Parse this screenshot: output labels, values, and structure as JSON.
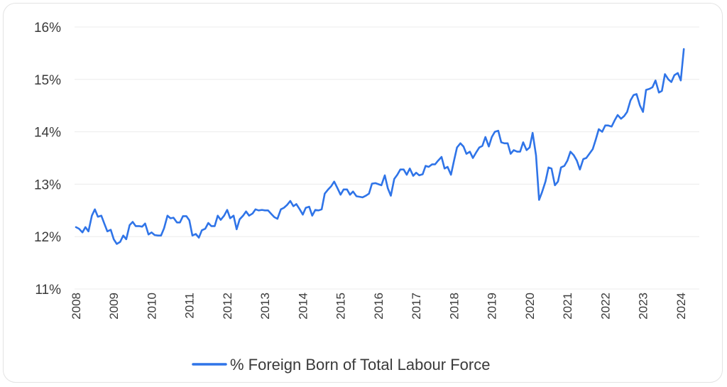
{
  "chart_data": {
    "type": "line",
    "title": "",
    "xlabel": "",
    "ylabel": "",
    "ylim": [
      11,
      16
    ],
    "y_ticks": [
      "11%",
      "12%",
      "13%",
      "14%",
      "15%",
      "16%"
    ],
    "y_tick_values": [
      11,
      12,
      13,
      14,
      15,
      16
    ],
    "x_ticks": [
      "2008",
      "2009",
      "2010",
      "2011",
      "2012",
      "2013",
      "2014",
      "2015",
      "2016",
      "2017",
      "2018",
      "2019",
      "2020",
      "2021",
      "2022",
      "2023",
      "2024"
    ],
    "x_tick_values": [
      2008,
      2009,
      2010,
      2011,
      2012,
      2013,
      2014,
      2015,
      2016,
      2017,
      2018,
      2019,
      2020,
      2021,
      2022,
      2023,
      2024
    ],
    "xlim": [
      2008,
      2024.17
    ],
    "grid": "horizontal",
    "legend_position": "bottom",
    "series": [
      {
        "name": "% Foreign Born of Total Labour Force",
        "color": "#2f74e8",
        "x": [
          2008.0,
          2008.08,
          2008.17,
          2008.25,
          2008.33,
          2008.42,
          2008.5,
          2008.58,
          2008.67,
          2008.75,
          2008.83,
          2008.92,
          2009.0,
          2009.08,
          2009.17,
          2009.25,
          2009.33,
          2009.42,
          2009.5,
          2009.58,
          2009.67,
          2009.75,
          2009.83,
          2009.92,
          2010.0,
          2010.08,
          2010.17,
          2010.25,
          2010.33,
          2010.42,
          2010.5,
          2010.58,
          2010.67,
          2010.75,
          2010.83,
          2010.92,
          2011.0,
          2011.08,
          2011.17,
          2011.25,
          2011.33,
          2011.42,
          2011.5,
          2011.58,
          2011.67,
          2011.75,
          2011.83,
          2011.92,
          2012.0,
          2012.08,
          2012.17,
          2012.25,
          2012.33,
          2012.42,
          2012.5,
          2012.58,
          2012.67,
          2012.75,
          2012.83,
          2012.92,
          2013.0,
          2013.08,
          2013.17,
          2013.25,
          2013.33,
          2013.42,
          2013.5,
          2013.58,
          2013.67,
          2013.75,
          2013.83,
          2013.92,
          2014.0,
          2014.08,
          2014.17,
          2014.25,
          2014.33,
          2014.42,
          2014.5,
          2014.58,
          2014.67,
          2014.75,
          2014.83,
          2014.92,
          2015.0,
          2015.08,
          2015.17,
          2015.25,
          2015.33,
          2015.42,
          2015.5,
          2015.58,
          2015.67,
          2015.75,
          2015.83,
          2015.92,
          2016.0,
          2016.08,
          2016.17,
          2016.25,
          2016.33,
          2016.42,
          2016.5,
          2016.58,
          2016.67,
          2016.75,
          2016.83,
          2016.92,
          2017.0,
          2017.08,
          2017.17,
          2017.25,
          2017.33,
          2017.42,
          2017.5,
          2017.58,
          2017.67,
          2017.75,
          2017.83,
          2017.92,
          2018.0,
          2018.08,
          2018.17,
          2018.25,
          2018.33,
          2018.42,
          2018.5,
          2018.58,
          2018.67,
          2018.75,
          2018.83,
          2018.92,
          2019.0,
          2019.08,
          2019.17,
          2019.25,
          2019.33,
          2019.42,
          2019.5,
          2019.58,
          2019.67,
          2019.75,
          2019.83,
          2019.92,
          2020.0,
          2020.08,
          2020.17,
          2020.25,
          2020.33,
          2020.42,
          2020.5,
          2020.58,
          2020.67,
          2020.75,
          2020.83,
          2020.92,
          2021.0,
          2021.08,
          2021.17,
          2021.25,
          2021.33,
          2021.42,
          2021.5,
          2021.58,
          2021.67,
          2021.75,
          2021.83,
          2021.92,
          2022.0,
          2022.08,
          2022.17,
          2022.25,
          2022.33,
          2022.42,
          2022.5,
          2022.58,
          2022.67,
          2022.75,
          2022.83,
          2022.92,
          2023.0,
          2023.08,
          2023.17,
          2023.25,
          2023.33,
          2023.42,
          2023.5,
          2023.58,
          2023.67,
          2023.75,
          2023.83,
          2023.92,
          2024.0,
          2024.08
        ],
        "values": [
          12.18,
          12.15,
          12.08,
          12.18,
          12.1,
          12.4,
          12.52,
          12.38,
          12.4,
          12.25,
          12.1,
          12.13,
          11.95,
          11.86,
          11.9,
          12.02,
          11.95,
          12.22,
          12.28,
          12.2,
          12.2,
          12.19,
          12.25,
          12.04,
          12.08,
          12.03,
          12.02,
          12.02,
          12.16,
          12.4,
          12.35,
          12.36,
          12.27,
          12.27,
          12.39,
          12.39,
          12.31,
          12.02,
          12.05,
          11.98,
          12.12,
          12.15,
          12.26,
          12.2,
          12.2,
          12.4,
          12.32,
          12.4,
          12.51,
          12.35,
          12.4,
          12.14,
          12.33,
          12.4,
          12.48,
          12.4,
          12.44,
          12.52,
          12.5,
          12.51,
          12.5,
          12.5,
          12.43,
          12.37,
          12.34,
          12.52,
          12.55,
          12.6,
          12.68,
          12.58,
          12.62,
          12.52,
          12.42,
          12.55,
          12.57,
          12.4,
          12.51,
          12.5,
          12.52,
          12.82,
          12.9,
          12.96,
          13.05,
          12.92,
          12.8,
          12.9,
          12.9,
          12.8,
          12.86,
          12.77,
          12.76,
          12.75,
          12.78,
          12.82,
          13.01,
          13.02,
          13.0,
          12.98,
          13.17,
          12.92,
          12.78,
          13.1,
          13.18,
          13.28,
          13.28,
          13.18,
          13.3,
          13.16,
          13.22,
          13.17,
          13.19,
          13.35,
          13.33,
          13.38,
          13.38,
          13.45,
          13.52,
          13.3,
          13.33,
          13.18,
          13.45,
          13.7,
          13.78,
          13.72,
          13.58,
          13.62,
          13.5,
          13.6,
          13.7,
          13.73,
          13.9,
          13.72,
          13.9,
          14.0,
          14.02,
          13.8,
          13.78,
          13.78,
          13.58,
          13.65,
          13.62,
          13.62,
          13.8,
          13.65,
          13.7,
          13.98,
          13.55,
          12.7,
          12.85,
          13.05,
          13.32,
          13.3,
          12.98,
          13.05,
          13.32,
          13.35,
          13.45,
          13.62,
          13.55,
          13.45,
          13.28,
          13.48,
          13.5,
          13.58,
          13.67,
          13.85,
          14.05,
          14.0,
          14.12,
          14.12,
          14.1,
          14.22,
          14.32,
          14.25,
          14.3,
          14.38,
          14.6,
          14.7,
          14.72,
          14.5,
          14.38,
          14.8,
          14.82,
          14.85,
          14.98,
          14.75,
          14.78,
          15.1,
          15.0,
          14.95,
          15.08,
          15.12,
          14.98,
          15.58
        ]
      }
    ]
  }
}
